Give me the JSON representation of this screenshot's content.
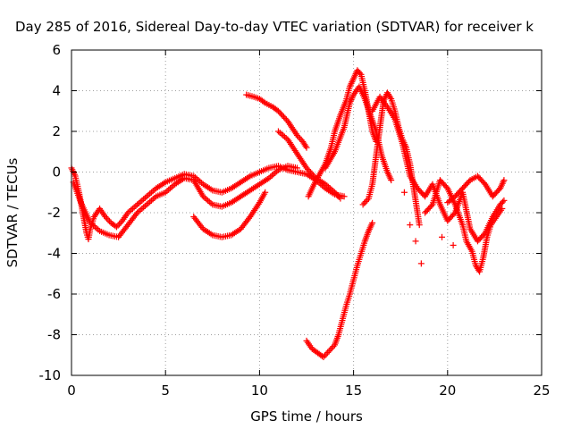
{
  "chart_data": {
    "type": "scatter",
    "title": "Day 285 of 2016, Sidereal Day-to-day VTEC variation (SDTVAR) for receiver k",
    "xlabel": "GPS time / hours",
    "ylabel": "SDTVAR / TECUs",
    "xlim": [
      0,
      25
    ],
    "ylim": [
      -10,
      6
    ],
    "x_ticks": [
      "0",
      "5",
      "10",
      "15",
      "20",
      "25"
    ],
    "y_ticks": [
      "-10",
      "-8",
      "-6",
      "-4",
      "-2",
      "0",
      "2",
      "4",
      "6"
    ],
    "grid": true,
    "marker": "+",
    "marker_color": "#ff0000",
    "series": [
      {
        "name": "trace-1",
        "points": [
          [
            0,
            0.2
          ],
          [
            0.2,
            -0.2
          ],
          [
            0.4,
            -1.0
          ],
          [
            0.6,
            -2.0
          ],
          [
            0.8,
            -3.0
          ],
          [
            0.9,
            -3.3
          ],
          [
            1.0,
            -2.8
          ],
          [
            1.2,
            -2.2
          ],
          [
            1.5,
            -1.8
          ],
          [
            1.8,
            -2.2
          ],
          [
            2.1,
            -2.5
          ],
          [
            2.4,
            -2.7
          ],
          [
            2.7,
            -2.4
          ],
          [
            3.0,
            -2.0
          ],
          [
            3.5,
            -1.6
          ],
          [
            4.0,
            -1.2
          ],
          [
            4.5,
            -0.8
          ],
          [
            5.0,
            -0.5
          ],
          [
            5.5,
            -0.3
          ],
          [
            6.0,
            -0.1
          ],
          [
            6.5,
            -0.2
          ],
          [
            7.0,
            -0.6
          ],
          [
            7.5,
            -0.9
          ],
          [
            8.0,
            -1.0
          ],
          [
            8.5,
            -0.8
          ],
          [
            9.0,
            -0.5
          ],
          [
            9.5,
            -0.2
          ],
          [
            10.0,
            0.0
          ],
          [
            10.5,
            0.2
          ],
          [
            11.0,
            0.3
          ],
          [
            11.5,
            0.1
          ],
          [
            12.0,
            0.0
          ],
          [
            12.5,
            -0.1
          ],
          [
            13.0,
            -0.4
          ],
          [
            13.5,
            -0.8
          ],
          [
            14.0,
            -1.1
          ],
          [
            14.5,
            -1.2
          ]
        ]
      },
      {
        "name": "trace-2",
        "points": [
          [
            0.1,
            -0.5
          ],
          [
            0.5,
            -1.5
          ],
          [
            1.0,
            -2.5
          ],
          [
            1.5,
            -2.9
          ],
          [
            2.0,
            -3.1
          ],
          [
            2.5,
            -3.2
          ],
          [
            3.0,
            -2.6
          ],
          [
            3.5,
            -2.0
          ],
          [
            4.0,
            -1.6
          ],
          [
            4.5,
            -1.2
          ],
          [
            5.0,
            -1.0
          ],
          [
            5.5,
            -0.6
          ],
          [
            6.0,
            -0.3
          ],
          [
            6.5,
            -0.4
          ],
          [
            7.0,
            -1.2
          ],
          [
            7.5,
            -1.6
          ],
          [
            8.0,
            -1.7
          ],
          [
            8.5,
            -1.5
          ],
          [
            9.0,
            -1.2
          ],
          [
            9.5,
            -0.9
          ],
          [
            10.0,
            -0.6
          ],
          [
            10.5,
            -0.3
          ],
          [
            11.0,
            0.1
          ],
          [
            11.5,
            0.3
          ],
          [
            12.0,
            0.2
          ]
        ]
      },
      {
        "name": "trace-3",
        "points": [
          [
            6.5,
            -2.2
          ],
          [
            7.0,
            -2.8
          ],
          [
            7.5,
            -3.1
          ],
          [
            8.0,
            -3.2
          ],
          [
            8.5,
            -3.1
          ],
          [
            9.0,
            -2.8
          ],
          [
            9.5,
            -2.2
          ],
          [
            10.0,
            -1.5
          ],
          [
            10.3,
            -1.0
          ]
        ]
      },
      {
        "name": "trace-4",
        "points": [
          [
            9.3,
            3.8
          ],
          [
            9.7,
            3.7
          ],
          [
            10.0,
            3.6
          ],
          [
            10.3,
            3.4
          ],
          [
            10.7,
            3.2
          ],
          [
            11.0,
            3.0
          ],
          [
            11.5,
            2.5
          ],
          [
            12.0,
            1.8
          ],
          [
            12.3,
            1.5
          ],
          [
            12.5,
            1.2
          ]
        ]
      },
      {
        "name": "trace-5",
        "points": [
          [
            11.0,
            2.0
          ],
          [
            11.5,
            1.6
          ],
          [
            12.0,
            0.9
          ],
          [
            12.5,
            0.2
          ],
          [
            13.0,
            -0.3
          ],
          [
            13.5,
            -0.6
          ],
          [
            14.0,
            -1.0
          ],
          [
            14.3,
            -1.3
          ]
        ]
      },
      {
        "name": "trace-6",
        "points": [
          [
            12.6,
            -1.2
          ],
          [
            12.9,
            -0.6
          ],
          [
            13.2,
            -0.1
          ],
          [
            13.5,
            0.4
          ],
          [
            13.8,
            1.2
          ],
          [
            14.0,
            2.0
          ],
          [
            14.3,
            2.8
          ],
          [
            14.6,
            3.5
          ],
          [
            14.8,
            4.2
          ],
          [
            15.0,
            4.6
          ],
          [
            15.2,
            5.0
          ],
          [
            15.4,
            4.8
          ],
          [
            15.6,
            4.0
          ],
          [
            15.8,
            3.0
          ],
          [
            16.0,
            2.0
          ],
          [
            16.2,
            1.5
          ]
        ]
      },
      {
        "name": "trace-7",
        "points": [
          [
            12.5,
            -8.3
          ],
          [
            12.8,
            -8.7
          ],
          [
            13.1,
            -8.9
          ],
          [
            13.4,
            -9.1
          ],
          [
            13.7,
            -8.8
          ],
          [
            14.0,
            -8.5
          ],
          [
            14.2,
            -8.0
          ],
          [
            14.4,
            -7.3
          ],
          [
            14.6,
            -6.6
          ],
          [
            14.8,
            -6.0
          ],
          [
            15.0,
            -5.3
          ],
          [
            15.2,
            -4.6
          ],
          [
            15.4,
            -4.0
          ],
          [
            15.6,
            -3.4
          ],
          [
            15.8,
            -2.9
          ],
          [
            16.0,
            -2.5
          ]
        ]
      },
      {
        "name": "trace-8",
        "points": [
          [
            13.5,
            0.2
          ],
          [
            14.0,
            1.0
          ],
          [
            14.5,
            2.2
          ],
          [
            14.8,
            3.4
          ],
          [
            15.0,
            3.8
          ],
          [
            15.3,
            4.2
          ],
          [
            15.6,
            3.6
          ],
          [
            15.9,
            2.8
          ],
          [
            16.2,
            2.0
          ],
          [
            16.5,
            0.8
          ],
          [
            16.8,
            0.0
          ],
          [
            17.0,
            -0.4
          ]
        ]
      },
      {
        "name": "trace-9",
        "points": [
          [
            15.5,
            -1.6
          ],
          [
            15.8,
            -1.3
          ],
          [
            16.0,
            -0.6
          ],
          [
            16.2,
            0.8
          ],
          [
            16.4,
            2.2
          ],
          [
            16.6,
            3.5
          ],
          [
            16.8,
            3.9
          ],
          [
            17.0,
            3.6
          ],
          [
            17.2,
            3.0
          ],
          [
            17.4,
            2.2
          ],
          [
            17.6,
            1.6
          ],
          [
            17.8,
            1.2
          ],
          [
            18.0,
            0.4
          ],
          [
            18.2,
            -0.8
          ],
          [
            18.4,
            -2.0
          ],
          [
            18.5,
            -2.6
          ]
        ]
      },
      {
        "name": "trace-10",
        "points": [
          [
            16.0,
            3.0
          ],
          [
            16.4,
            3.7
          ],
          [
            16.8,
            3.2
          ],
          [
            17.2,
            2.6
          ],
          [
            17.6,
            1.4
          ],
          [
            18.0,
            -0.2
          ],
          [
            18.4,
            -0.8
          ],
          [
            18.8,
            -1.2
          ],
          [
            19.2,
            -0.6
          ],
          [
            19.6,
            -1.6
          ],
          [
            20.0,
            -2.4
          ],
          [
            20.4,
            -2.0
          ],
          [
            20.8,
            -1.0
          ],
          [
            21.2,
            -2.8
          ],
          [
            21.6,
            -3.4
          ],
          [
            22.0,
            -3.0
          ],
          [
            22.4,
            -2.2
          ],
          [
            22.8,
            -1.6
          ],
          [
            23.0,
            -1.4
          ]
        ]
      },
      {
        "name": "trace-11",
        "points": [
          [
            18.8,
            -2.0
          ],
          [
            19.2,
            -1.6
          ],
          [
            19.6,
            -0.4
          ],
          [
            20.0,
            -0.8
          ],
          [
            20.4,
            -1.6
          ],
          [
            20.8,
            -2.6
          ],
          [
            21.0,
            -3.4
          ],
          [
            21.3,
            -3.9
          ],
          [
            21.5,
            -4.6
          ],
          [
            21.7,
            -4.9
          ],
          [
            21.9,
            -4.2
          ],
          [
            22.1,
            -3.2
          ],
          [
            22.3,
            -2.6
          ],
          [
            22.6,
            -2.2
          ],
          [
            22.9,
            -1.8
          ]
        ]
      },
      {
        "name": "trace-12",
        "points": [
          [
            20.0,
            -1.5
          ],
          [
            20.4,
            -1.2
          ],
          [
            20.8,
            -0.8
          ],
          [
            21.2,
            -0.4
          ],
          [
            21.6,
            -0.2
          ],
          [
            22.0,
            -0.6
          ],
          [
            22.4,
            -1.2
          ],
          [
            22.8,
            -0.8
          ],
          [
            23.0,
            -0.4
          ]
        ]
      },
      {
        "name": "trace-13",
        "points": [
          [
            18.6,
            -4.5
          ],
          [
            19.7,
            -3.2
          ],
          [
            20.3,
            -3.6
          ],
          [
            17.7,
            -1.0
          ],
          [
            18.0,
            -2.6
          ],
          [
            18.3,
            -3.4
          ]
        ]
      }
    ]
  }
}
